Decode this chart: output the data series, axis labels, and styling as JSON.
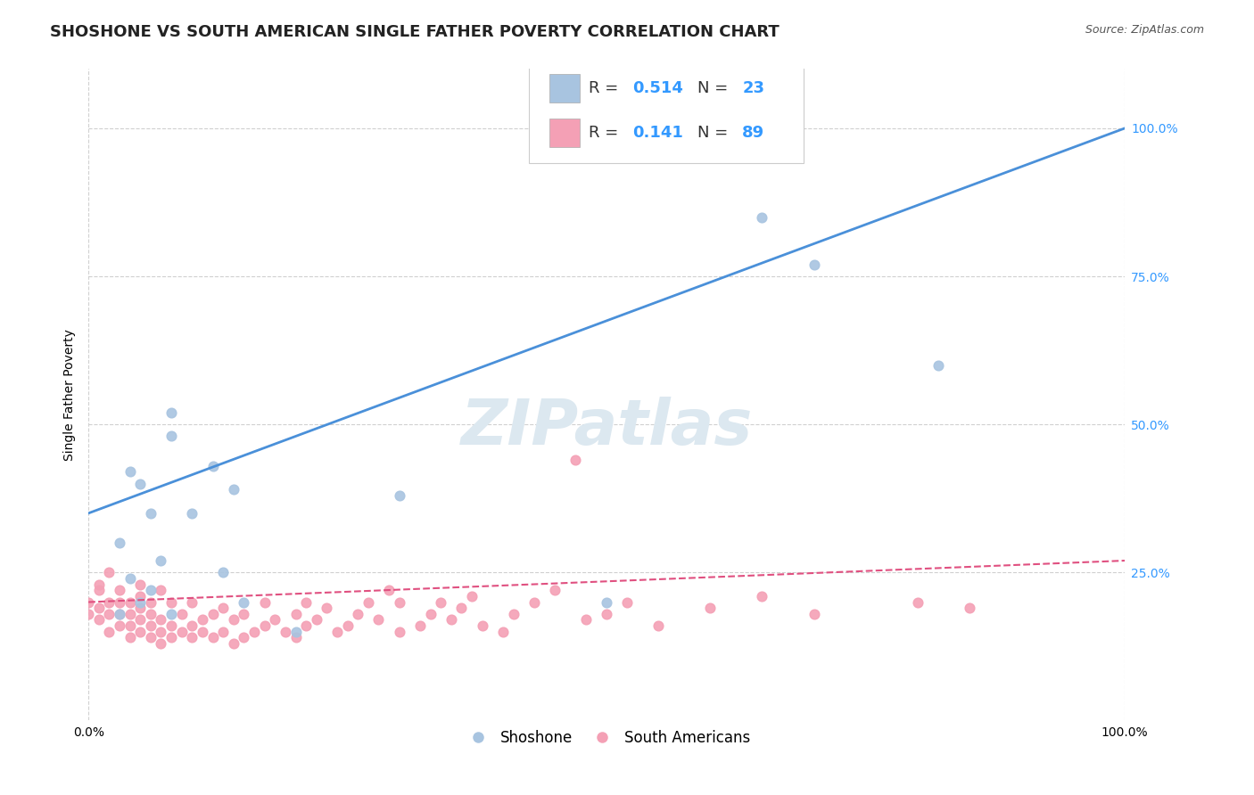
{
  "title": "SHOSHONE VS SOUTH AMERICAN SINGLE FATHER POVERTY CORRELATION CHART",
  "source": "Source: ZipAtlas.com",
  "xlabel": "",
  "ylabel": "Single Father Poverty",
  "watermark": "ZIPatlas",
  "shoshone": {
    "R": 0.514,
    "N": 23,
    "color": "#a8c4e0",
    "line_color": "#4a90d9",
    "x": [
      0.05,
      0.08,
      0.08,
      0.03,
      0.04,
      0.05,
      0.06,
      0.07,
      0.12,
      0.13,
      0.14,
      0.15,
      0.08,
      0.06,
      0.04,
      0.03,
      0.65,
      0.7,
      0.82,
      0.1,
      0.2,
      0.3,
      0.5
    ],
    "y": [
      0.2,
      0.48,
      0.52,
      0.3,
      0.42,
      0.4,
      0.35,
      0.27,
      0.43,
      0.25,
      0.39,
      0.2,
      0.18,
      0.22,
      0.24,
      0.18,
      0.85,
      0.77,
      0.6,
      0.35,
      0.15,
      0.38,
      0.2
    ],
    "trendline_x": [
      0.0,
      1.0
    ],
    "trendline_y": [
      0.35,
      1.0
    ]
  },
  "south_americans": {
    "R": 0.141,
    "N": 89,
    "color": "#f4a0b5",
    "line_color": "#e05080",
    "x": [
      0.0,
      0.0,
      0.01,
      0.01,
      0.01,
      0.01,
      0.02,
      0.02,
      0.02,
      0.02,
      0.03,
      0.03,
      0.03,
      0.03,
      0.04,
      0.04,
      0.04,
      0.04,
      0.05,
      0.05,
      0.05,
      0.05,
      0.05,
      0.06,
      0.06,
      0.06,
      0.06,
      0.07,
      0.07,
      0.07,
      0.07,
      0.08,
      0.08,
      0.08,
      0.09,
      0.09,
      0.1,
      0.1,
      0.1,
      0.11,
      0.11,
      0.12,
      0.12,
      0.13,
      0.13,
      0.14,
      0.14,
      0.15,
      0.15,
      0.16,
      0.17,
      0.17,
      0.18,
      0.19,
      0.2,
      0.2,
      0.21,
      0.21,
      0.22,
      0.23,
      0.24,
      0.25,
      0.26,
      0.27,
      0.28,
      0.29,
      0.3,
      0.3,
      0.32,
      0.33,
      0.34,
      0.35,
      0.36,
      0.37,
      0.38,
      0.4,
      0.41,
      0.43,
      0.45,
      0.47,
      0.48,
      0.5,
      0.52,
      0.55,
      0.6,
      0.65,
      0.7,
      0.8,
      0.85
    ],
    "y": [
      0.18,
      0.2,
      0.17,
      0.19,
      0.22,
      0.23,
      0.15,
      0.18,
      0.2,
      0.25,
      0.16,
      0.18,
      0.2,
      0.22,
      0.14,
      0.16,
      0.18,
      0.2,
      0.15,
      0.17,
      0.19,
      0.21,
      0.23,
      0.14,
      0.16,
      0.18,
      0.2,
      0.13,
      0.15,
      0.17,
      0.22,
      0.14,
      0.16,
      0.2,
      0.15,
      0.18,
      0.14,
      0.16,
      0.2,
      0.15,
      0.17,
      0.14,
      0.18,
      0.15,
      0.19,
      0.13,
      0.17,
      0.14,
      0.18,
      0.15,
      0.16,
      0.2,
      0.17,
      0.15,
      0.14,
      0.18,
      0.16,
      0.2,
      0.17,
      0.19,
      0.15,
      0.16,
      0.18,
      0.2,
      0.17,
      0.22,
      0.15,
      0.2,
      0.16,
      0.18,
      0.2,
      0.17,
      0.19,
      0.21,
      0.16,
      0.15,
      0.18,
      0.2,
      0.22,
      0.44,
      0.17,
      0.18,
      0.2,
      0.16,
      0.19,
      0.21,
      0.18,
      0.2,
      0.19
    ],
    "trendline_x": [
      0.0,
      1.0
    ],
    "trendline_y": [
      0.2,
      0.27
    ]
  },
  "xlim": [
    0.0,
    1.0
  ],
  "ylim": [
    0.0,
    1.1
  ],
  "right_yticks": [
    0.25,
    0.5,
    0.75,
    1.0
  ],
  "right_yticklabels": [
    "25.0%",
    "50.0%",
    "75.0%",
    "100.0%"
  ],
  "xticklabels": [
    "0.0%",
    "100.0%"
  ],
  "background_color": "#ffffff",
  "grid_color": "#d0d0d0",
  "watermark_color": "#dce8f0",
  "title_fontsize": 13,
  "label_fontsize": 10,
  "tick_fontsize": 10,
  "legend_fontsize": 12
}
